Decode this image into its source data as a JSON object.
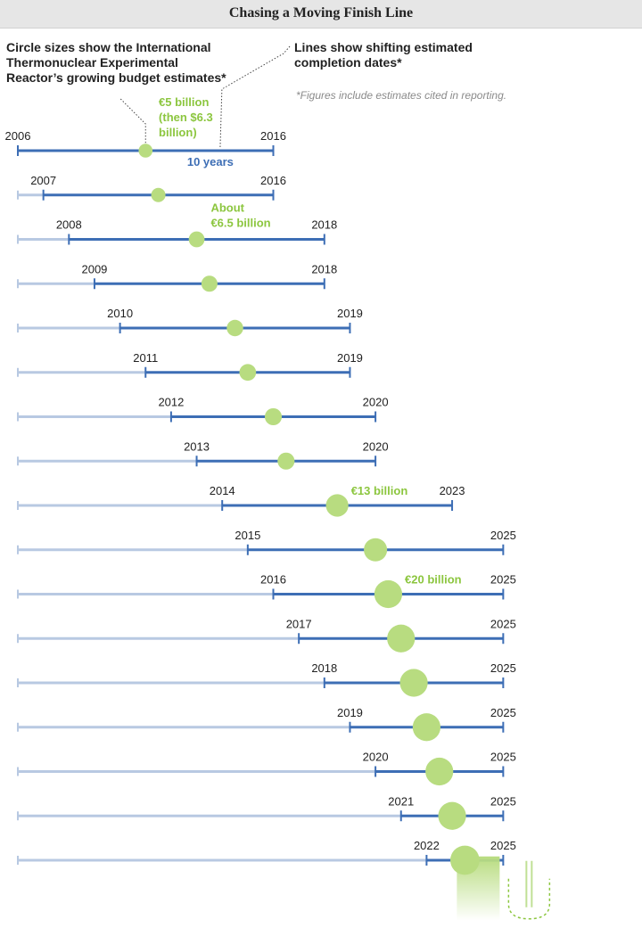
{
  "title": "Chasing a Moving Finish Line",
  "notes": {
    "circle_note": "Circle sizes show the International Thermonuclear Experimental Reactor’s growing budget estimates*",
    "line_note": "Lines show shifting estimated completion dates*",
    "footnote": "*Figures include estimates cited in reporting."
  },
  "colors": {
    "line": "#3d6eb5",
    "baseline": "#b8c9e2",
    "circle": "#b8dc80",
    "budget_text": "#8cc63f"
  },
  "chart_data": {
    "type": "timeline",
    "title": "Chasing a Moving Finish Line",
    "estimates": [
      {
        "year": 2006,
        "completion": 2016,
        "budget_billion_eur": 5
      },
      {
        "year": 2007,
        "completion": 2016,
        "budget_billion_eur": 5.3
      },
      {
        "year": 2008,
        "completion": 2018,
        "budget_billion_eur": 6.5
      },
      {
        "year": 2009,
        "completion": 2018,
        "budget_billion_eur": 6.7
      },
      {
        "year": 2010,
        "completion": 2019,
        "budget_billion_eur": 7.0
      },
      {
        "year": 2011,
        "completion": 2019,
        "budget_billion_eur": 7.2
      },
      {
        "year": 2012,
        "completion": 2020,
        "budget_billion_eur": 7.5
      },
      {
        "year": 2013,
        "completion": 2020,
        "budget_billion_eur": 7.5
      },
      {
        "year": 2014,
        "completion": 2023,
        "budget_billion_eur": 13
      },
      {
        "year": 2015,
        "completion": 2025,
        "budget_billion_eur": 14
      },
      {
        "year": 2016,
        "completion": 2025,
        "budget_billion_eur": 20
      },
      {
        "year": 2017,
        "completion": 2025,
        "budget_billion_eur": 20
      },
      {
        "year": 2018,
        "completion": 2025,
        "budget_billion_eur": 20
      },
      {
        "year": 2019,
        "completion": 2025,
        "budget_billion_eur": 20
      },
      {
        "year": 2020,
        "completion": 2025,
        "budget_billion_eur": 20
      },
      {
        "year": 2021,
        "completion": 2025,
        "budget_billion_eur": 20
      },
      {
        "year": 2022,
        "completion": 2025,
        "budget_billion_eur": 22
      }
    ],
    "budget_annotations": [
      {
        "row": 0,
        "lines": [
          "€5 billion",
          "(then $6.3",
          "billion)"
        ]
      },
      {
        "row": 2,
        "lines": [
          "About",
          "€6.5 billion"
        ]
      },
      {
        "row": 8,
        "lines": [
          "€13 billion"
        ]
      },
      {
        "row": 10,
        "lines": [
          "€20 billion"
        ]
      }
    ],
    "span_annotation": {
      "row": 0,
      "text": "10 years"
    },
    "x_range": [
      2006,
      2026
    ]
  }
}
